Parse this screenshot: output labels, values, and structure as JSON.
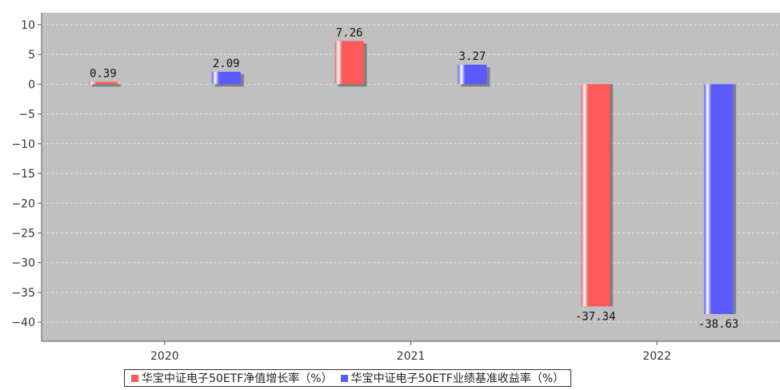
{
  "chart_data": {
    "type": "bar",
    "title": "",
    "categories": [
      "2020",
      "2021",
      "2022"
    ],
    "series": [
      {
        "name": "华宝中证电子50ETF净值增长率（%）",
        "color": "#ff5a5a",
        "values": [
          0.39,
          7.26,
          -37.34
        ]
      },
      {
        "name": "华宝中证电子50ETF业绩基准收益率（%）",
        "color": "#5a5aff",
        "values": [
          2.09,
          3.27,
          -38.63
        ]
      }
    ],
    "yticks": [
      10,
      5,
      0,
      -5,
      -10,
      -15,
      -20,
      -25,
      -30,
      -35,
      -40
    ],
    "ylim": [
      -43.2,
      12
    ],
    "grid": true,
    "plot_background": "#c0c0c0",
    "legend_position": "bottom"
  }
}
